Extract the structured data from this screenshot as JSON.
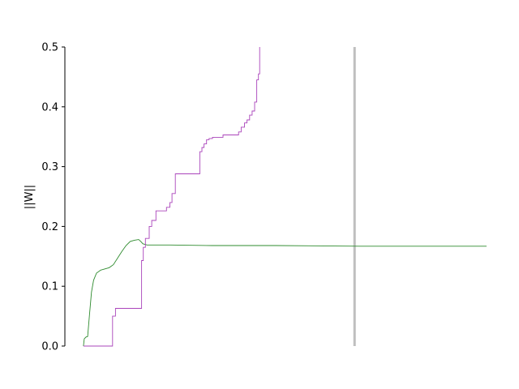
{
  "chart_data": {
    "type": "line",
    "title": "",
    "xlabel": "",
    "ylabel": "||W||",
    "xlim": [
      0,
      1
    ],
    "ylim": [
      0,
      0.5
    ],
    "x_ticks_visible": false,
    "y_ticks": [
      "0.0",
      "0.1",
      "0.2",
      "0.3",
      "0.4",
      "0.5"
    ],
    "grid": false,
    "legend": "none",
    "vertical_marker": {
      "x": 0.687,
      "color": "#bfbfbf"
    },
    "series": [
      {
        "color": "#2e8b2e",
        "style": "smooth",
        "points": [
          [
            0.044,
            0.0
          ],
          [
            0.046,
            0.012
          ],
          [
            0.05,
            0.015
          ],
          [
            0.054,
            0.016
          ],
          [
            0.058,
            0.05
          ],
          [
            0.063,
            0.09
          ],
          [
            0.068,
            0.11
          ],
          [
            0.075,
            0.122
          ],
          [
            0.085,
            0.127
          ],
          [
            0.095,
            0.129
          ],
          [
            0.105,
            0.131
          ],
          [
            0.115,
            0.136
          ],
          [
            0.125,
            0.147
          ],
          [
            0.135,
            0.158
          ],
          [
            0.145,
            0.168
          ],
          [
            0.155,
            0.175
          ],
          [
            0.165,
            0.177
          ],
          [
            0.175,
            0.178
          ],
          [
            0.18,
            0.175
          ],
          [
            0.185,
            0.171
          ],
          [
            0.195,
            0.169
          ],
          [
            0.25,
            0.169
          ],
          [
            0.35,
            0.168
          ],
          [
            0.5,
            0.168
          ],
          [
            0.7,
            0.167
          ],
          [
            0.85,
            0.167
          ],
          [
            1.0,
            0.167
          ]
        ]
      },
      {
        "color": "#aa44bb",
        "style": "step",
        "points": [
          [
            0.044,
            0.0
          ],
          [
            0.113,
            0.0
          ],
          [
            0.113,
            0.05
          ],
          [
            0.12,
            0.05
          ],
          [
            0.12,
            0.063
          ],
          [
            0.182,
            0.063
          ],
          [
            0.182,
            0.143
          ],
          [
            0.186,
            0.143
          ],
          [
            0.186,
            0.165
          ],
          [
            0.191,
            0.165
          ],
          [
            0.191,
            0.18
          ],
          [
            0.2,
            0.18
          ],
          [
            0.2,
            0.2
          ],
          [
            0.206,
            0.2
          ],
          [
            0.206,
            0.21
          ],
          [
            0.216,
            0.21
          ],
          [
            0.216,
            0.226
          ],
          [
            0.241,
            0.226
          ],
          [
            0.241,
            0.232
          ],
          [
            0.249,
            0.232
          ],
          [
            0.249,
            0.24
          ],
          [
            0.254,
            0.24
          ],
          [
            0.254,
            0.255
          ],
          [
            0.262,
            0.255
          ],
          [
            0.262,
            0.288
          ],
          [
            0.32,
            0.288
          ],
          [
            0.32,
            0.325
          ],
          [
            0.325,
            0.325
          ],
          [
            0.325,
            0.332
          ],
          [
            0.33,
            0.332
          ],
          [
            0.33,
            0.338
          ],
          [
            0.336,
            0.338
          ],
          [
            0.336,
            0.345
          ],
          [
            0.342,
            0.345
          ],
          [
            0.342,
            0.347
          ],
          [
            0.35,
            0.347
          ],
          [
            0.35,
            0.349
          ],
          [
            0.375,
            0.349
          ],
          [
            0.375,
            0.353
          ],
          [
            0.412,
            0.353
          ],
          [
            0.412,
            0.358
          ],
          [
            0.418,
            0.358
          ],
          [
            0.418,
            0.366
          ],
          [
            0.426,
            0.366
          ],
          [
            0.426,
            0.373
          ],
          [
            0.432,
            0.373
          ],
          [
            0.432,
            0.378
          ],
          [
            0.438,
            0.378
          ],
          [
            0.438,
            0.386
          ],
          [
            0.444,
            0.386
          ],
          [
            0.444,
            0.393
          ],
          [
            0.45,
            0.393
          ],
          [
            0.45,
            0.408
          ],
          [
            0.455,
            0.408
          ],
          [
            0.455,
            0.445
          ],
          [
            0.459,
            0.445
          ],
          [
            0.459,
            0.455
          ],
          [
            0.462,
            0.455
          ],
          [
            0.462,
            0.5
          ]
        ]
      }
    ]
  }
}
